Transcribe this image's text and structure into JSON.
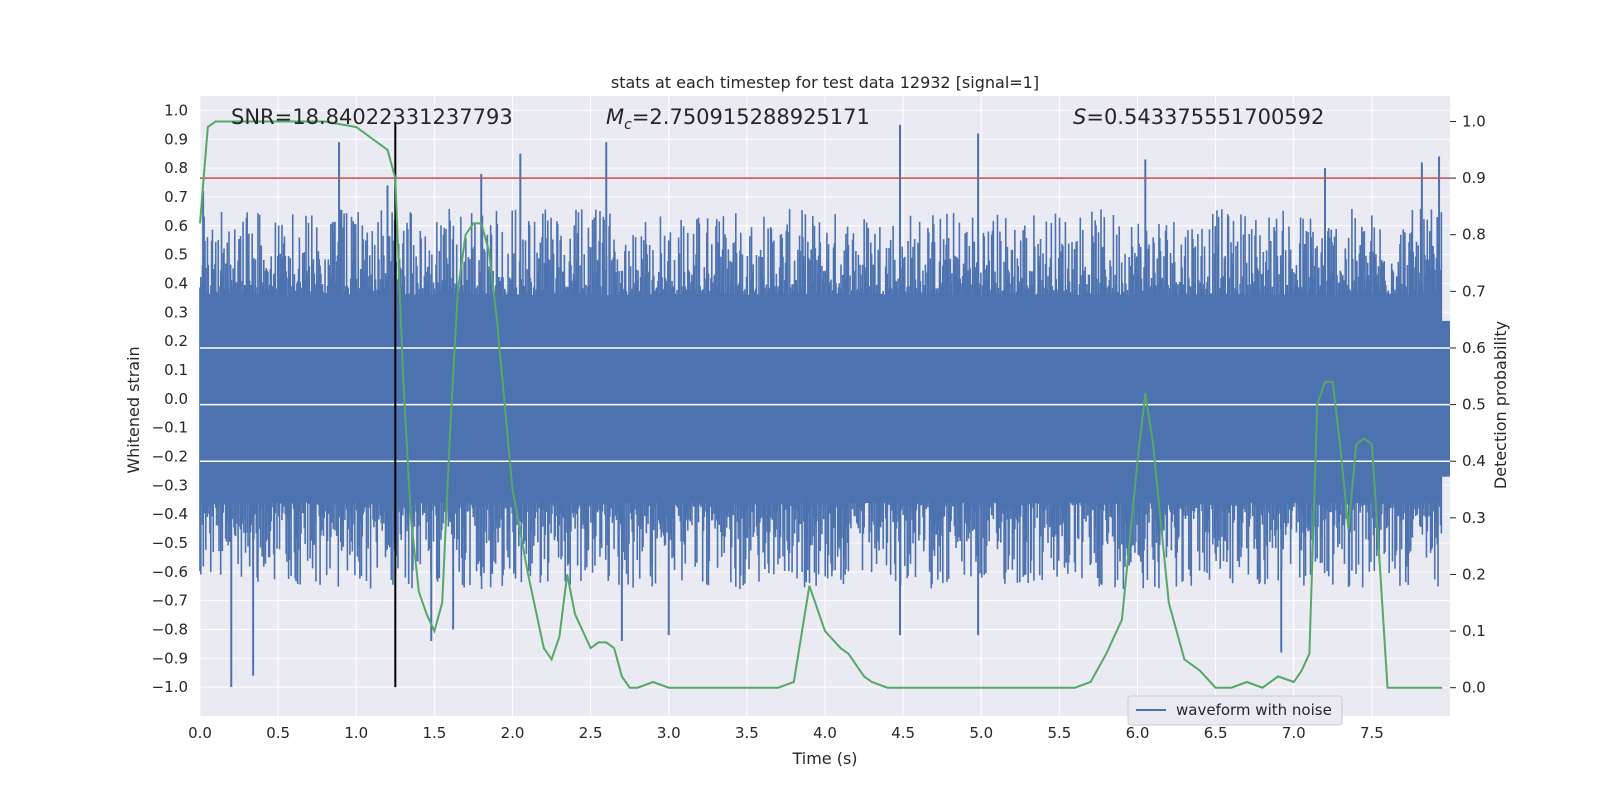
{
  "chart_data": {
    "type": "line",
    "title": "stats at each timestep for test data 12932 [signal=1]",
    "xlabel": "Time (s)",
    "ylabel": "Whitened strain",
    "y2label": "Detection probability",
    "xlim": [
      0.0,
      8.0
    ],
    "ylim": [
      -1.1,
      1.05
    ],
    "y2lim": [
      -0.05,
      1.045
    ],
    "x_ticks": [
      "0.0",
      "0.5",
      "1.0",
      "1.5",
      "2.0",
      "2.5",
      "3.0",
      "3.5",
      "4.0",
      "4.5",
      "5.0",
      "5.5",
      "6.0",
      "6.5",
      "7.0",
      "7.5"
    ],
    "y_ticks": [
      "1.0",
      "0.9",
      "0.8",
      "0.7",
      "0.6",
      "0.5",
      "0.4",
      "0.3",
      "0.2",
      "0.1",
      "0.0",
      "−0.1",
      "−0.2",
      "−0.3",
      "−0.4",
      "−0.5",
      "−0.6",
      "−0.7",
      "−0.8",
      "−0.9",
      "−1.0"
    ],
    "y2_ticks": [
      "0.0",
      "0.1",
      "0.2",
      "0.3",
      "0.4",
      "0.5",
      "0.6",
      "0.7",
      "0.8",
      "0.9",
      "1.0"
    ],
    "grid": true,
    "legend": {
      "position": "lower-right",
      "entries": [
        "waveform with noise"
      ]
    },
    "annotations": {
      "snr": "SNR=18.84022331237793",
      "mc_symbol": "M",
      "mc_sub": "c",
      "mc_value": "=2.750915288925171",
      "s_symbol": "S",
      "s_value": "=0.543375551700592"
    },
    "threshold_probability": 0.9,
    "marker_time": 1.25,
    "colors": {
      "waveform": "#4c72b0",
      "probability": "#55a868",
      "threshold": "#c44e52",
      "marker": "#000000",
      "plot_bg": "#eaeaf2",
      "grid": "#ffffff"
    },
    "series": [
      {
        "name": "waveform with noise",
        "axis": "left",
        "noise_envelope": 0.36,
        "spikes": [
          {
            "t": 0.02,
            "v": 0.72
          },
          {
            "t": 0.89,
            "v": 0.89
          },
          {
            "t": 1.2,
            "v": 0.74
          },
          {
            "t": 1.8,
            "v": 0.78
          },
          {
            "t": 2.05,
            "v": 0.85
          },
          {
            "t": 2.6,
            "v": 0.89
          },
          {
            "t": 4.48,
            "v": 0.95
          },
          {
            "t": 4.98,
            "v": 0.92
          },
          {
            "t": 6.05,
            "v": 0.83
          },
          {
            "t": 7.2,
            "v": 0.8
          },
          {
            "t": 7.82,
            "v": 0.82
          },
          {
            "t": 7.93,
            "v": 0.84
          },
          {
            "t": 0.2,
            "v": -1.0
          },
          {
            "t": 0.34,
            "v": -0.96
          },
          {
            "t": 1.48,
            "v": -0.84
          },
          {
            "t": 1.62,
            "v": -0.8
          },
          {
            "t": 2.7,
            "v": -0.84
          },
          {
            "t": 3.0,
            "v": -0.82
          },
          {
            "t": 4.48,
            "v": -0.82
          },
          {
            "t": 4.98,
            "v": -0.82
          },
          {
            "t": 6.92,
            "v": -0.88
          }
        ]
      },
      {
        "name": "",
        "axis": "right",
        "x": [
          0.0,
          0.05,
          0.1,
          0.2,
          0.3,
          0.5,
          0.8,
          1.0,
          1.1,
          1.2,
          1.25,
          1.3,
          1.35,
          1.4,
          1.45,
          1.5,
          1.55,
          1.6,
          1.65,
          1.7,
          1.75,
          1.8,
          1.85,
          1.9,
          2.0,
          2.1,
          2.2,
          2.25,
          2.3,
          2.35,
          2.4,
          2.45,
          2.5,
          2.55,
          2.6,
          2.65,
          2.7,
          2.75,
          2.8,
          2.9,
          3.0,
          3.2,
          3.5,
          3.7,
          3.8,
          3.9,
          4.0,
          4.1,
          4.15,
          4.25,
          4.3,
          4.4,
          4.5,
          4.6,
          5.0,
          5.5,
          5.6,
          5.7,
          5.8,
          5.9,
          6.0,
          6.05,
          6.1,
          6.2,
          6.3,
          6.4,
          6.5,
          6.6,
          6.7,
          6.8,
          6.9,
          7.0,
          7.05,
          7.1,
          7.15,
          7.2,
          7.25,
          7.3,
          7.35,
          7.4,
          7.45,
          7.5,
          7.55,
          7.6,
          7.7,
          7.8,
          7.95
        ],
        "y": [
          0.82,
          0.99,
          1.0,
          1.0,
          1.0,
          1.0,
          1.0,
          0.99,
          0.97,
          0.95,
          0.9,
          0.55,
          0.3,
          0.17,
          0.13,
          0.1,
          0.15,
          0.45,
          0.7,
          0.8,
          0.82,
          0.82,
          0.77,
          0.65,
          0.35,
          0.2,
          0.07,
          0.05,
          0.09,
          0.2,
          0.13,
          0.1,
          0.07,
          0.08,
          0.08,
          0.07,
          0.02,
          0.0,
          0.0,
          0.01,
          0.0,
          0.0,
          0.0,
          0.0,
          0.01,
          0.18,
          0.1,
          0.07,
          0.06,
          0.02,
          0.01,
          0.0,
          0.0,
          0.0,
          0.0,
          0.0,
          0.0,
          0.01,
          0.06,
          0.12,
          0.4,
          0.52,
          0.43,
          0.15,
          0.05,
          0.03,
          0.0,
          0.0,
          0.01,
          0.0,
          0.02,
          0.01,
          0.03,
          0.06,
          0.5,
          0.54,
          0.54,
          0.42,
          0.28,
          0.43,
          0.44,
          0.43,
          0.22,
          0.0,
          0.0,
          0.0,
          0.0
        ]
      }
    ]
  }
}
